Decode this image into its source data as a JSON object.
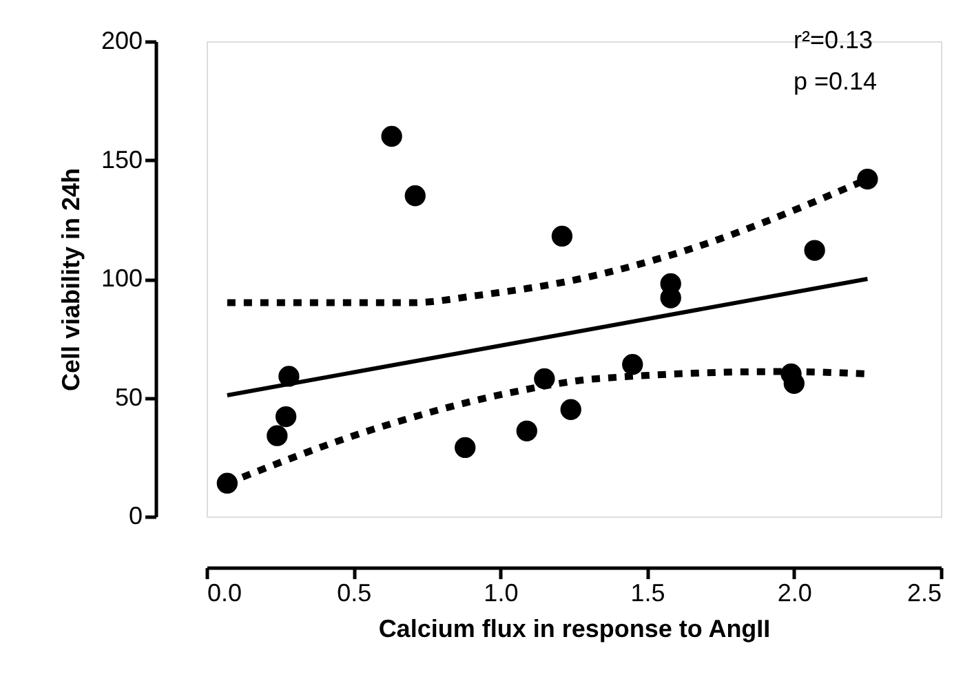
{
  "chart_data": {
    "type": "scatter",
    "xlabel": "Calcium flux in response to AngII",
    "ylabel": "Cell viability in 24h",
    "xlim": [
      0,
      2.5
    ],
    "xticks": [
      {
        "value": 0,
        "label": "0.0"
      },
      0.5,
      {
        "value": 1,
        "label": "1.0"
      },
      1.5,
      {
        "value": 2,
        "label": "2.0"
      },
      2.5
    ],
    "ylim": [
      0,
      200
    ],
    "yticks": [
      0,
      50,
      100,
      150,
      200
    ],
    "grid": false,
    "annotations": [
      "r²=0.13",
      "p =0.14"
    ],
    "series": [
      {
        "marker": "circle",
        "color": "#000000",
        "x": [
          0.07,
          0.24,
          0.27,
          0.28,
          0.63,
          0.71,
          0.88,
          1.09,
          1.15,
          1.21,
          1.24,
          1.45,
          1.58,
          1.58,
          1.99,
          2.0,
          2.07,
          2.25
        ],
        "values": [
          14,
          34,
          42,
          59,
          160,
          135,
          29,
          36,
          58,
          118,
          45,
          64,
          98,
          92,
          60,
          56,
          112,
          142
        ]
      },
      {
        "type": "line",
        "line_style": "solid",
        "color": "#000000",
        "x": [
          0.07,
          2.25
        ],
        "values": [
          51,
          100
        ]
      },
      {
        "type": "line",
        "line_style": "dotted",
        "color": "#000000",
        "x": [
          0.07,
          0.7,
          0.92,
          1.27,
          1.58,
          2.25
        ],
        "values": [
          90,
          90,
          93,
          100,
          110,
          142
        ]
      },
      {
        "type": "line",
        "line_style": "dotted",
        "color": "#000000",
        "x": [
          0.07,
          0.55,
          1.03,
          1.33,
          1.96,
          2.25
        ],
        "values": [
          14,
          36,
          52,
          58,
          61,
          60
        ]
      }
    ]
  }
}
